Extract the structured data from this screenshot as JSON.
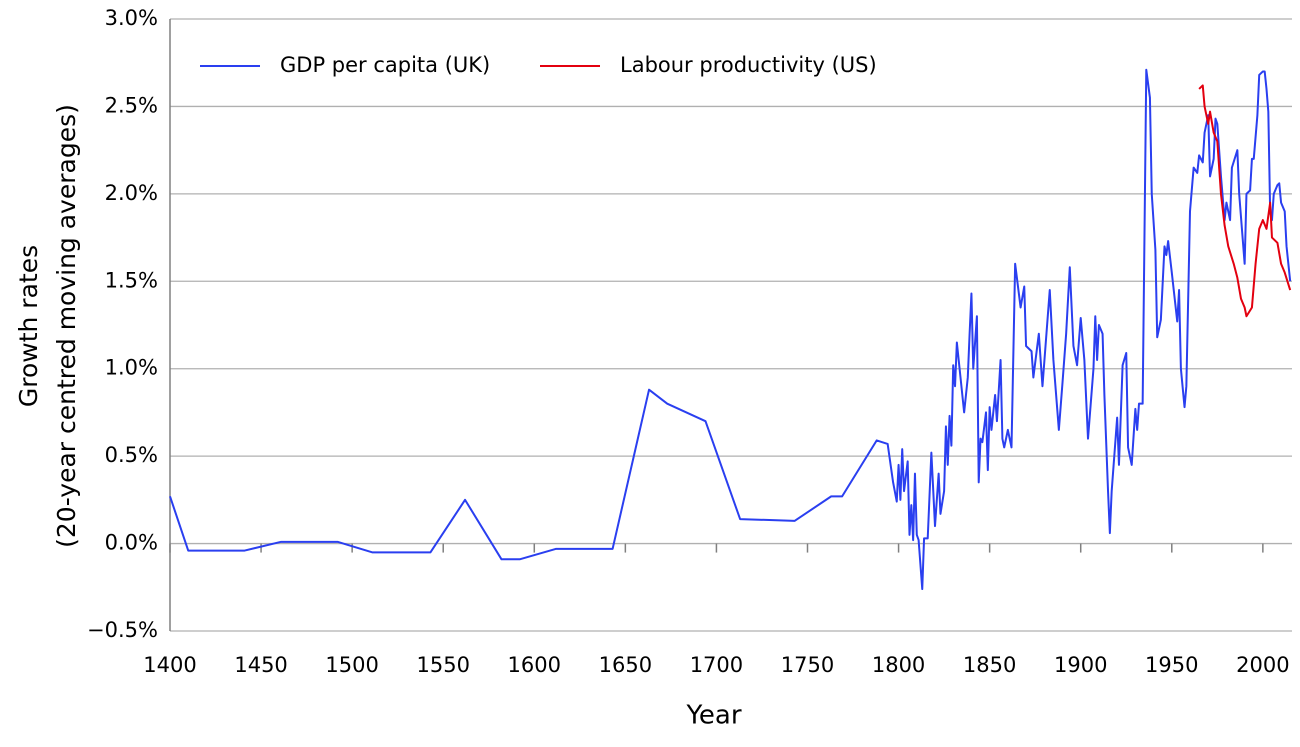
{
  "chart_data": {
    "type": "line",
    "xlabel": "Year",
    "ylabel": [
      "Growth rates",
      "(20-year centred moving averages)"
    ],
    "xlim": [
      1400,
      2016
    ],
    "ylim": [
      -0.5,
      3.0
    ],
    "xticks": [
      1400,
      1450,
      1500,
      1550,
      1600,
      1650,
      1700,
      1750,
      1800,
      1850,
      1900,
      1950,
      2000
    ],
    "yticks": [
      {
        "value": -0.5,
        "label": "−0.5%"
      },
      {
        "value": 0.0,
        "label": "0.0%"
      },
      {
        "value": 0.5,
        "label": "0.5%"
      },
      {
        "value": 1.0,
        "label": "1.0%"
      },
      {
        "value": 1.5,
        "label": "1.5%"
      },
      {
        "value": 2.0,
        "label": "2.0%"
      },
      {
        "value": 2.5,
        "label": "2.5%"
      },
      {
        "value": 3.0,
        "label": "3.0%"
      }
    ],
    "grid": true,
    "legend": "top-left",
    "series": [
      {
        "name": "GDP per capita (UK)",
        "color": "#2a3ff0",
        "x": [
          1400,
          1410,
          1441,
          1461,
          1492,
          1511,
          1543,
          1562,
          1582,
          1592,
          1612,
          1643,
          1663,
          1673,
          1694,
          1713,
          1743,
          1763,
          1769,
          1788,
          1794,
          1797,
          1799,
          1800,
          1801,
          1802,
          1803,
          1805,
          1806,
          1807,
          1808,
          1809,
          1810,
          1811,
          1813,
          1814,
          1816,
          1818,
          1820,
          1822,
          1823,
          1825,
          1826,
          1827,
          1828,
          1829,
          1830,
          1831,
          1832,
          1834,
          1836,
          1838,
          1839,
          1840,
          1841,
          1843,
          1844,
          1845,
          1846,
          1848,
          1849,
          1850,
          1851,
          1853,
          1854,
          1856,
          1857,
          1858,
          1860,
          1862,
          1864,
          1867,
          1869,
          1870,
          1873,
          1874,
          1877,
          1879,
          1883,
          1885,
          1888,
          1890,
          1892,
          1894,
          1896,
          1898,
          1900,
          1902,
          1904,
          1907,
          1908,
          1909,
          1910,
          1912,
          1913,
          1915,
          1916,
          1917,
          1920,
          1921,
          1923,
          1925,
          1926,
          1928,
          1930,
          1931,
          1932,
          1934,
          1936,
          1938,
          1939,
          1941,
          1942,
          1944,
          1946,
          1947,
          1948,
          1950,
          1953,
          1954,
          1955,
          1957,
          1958,
          1960,
          1962,
          1964,
          1965,
          1967,
          1968,
          1970,
          1971,
          1973,
          1974,
          1975,
          1977,
          1979,
          1980,
          1982,
          1983,
          1986,
          1987,
          1990,
          1991,
          1993,
          1994,
          1995,
          1997,
          1998,
          2000,
          2001,
          2002,
          2003,
          2004,
          2005,
          2006,
          2008,
          2009,
          2010,
          2012,
          2013,
          2015
        ],
        "values": [
          0.27,
          -0.04,
          -0.04,
          0.01,
          0.01,
          -0.05,
          -0.05,
          0.25,
          -0.09,
          -0.09,
          -0.03,
          -0.03,
          0.88,
          0.8,
          0.7,
          0.14,
          0.13,
          0.27,
          0.27,
          0.59,
          0.57,
          0.35,
          0.24,
          0.45,
          0.25,
          0.54,
          0.3,
          0.47,
          0.05,
          0.22,
          0.02,
          0.4,
          0.05,
          0.02,
          -0.26,
          0.03,
          0.03,
          0.52,
          0.1,
          0.4,
          0.17,
          0.3,
          0.67,
          0.45,
          0.73,
          0.56,
          1.02,
          0.9,
          1.15,
          0.95,
          0.75,
          0.95,
          1.2,
          1.43,
          1.0,
          1.3,
          0.35,
          0.6,
          0.58,
          0.75,
          0.42,
          0.78,
          0.65,
          0.85,
          0.7,
          1.05,
          0.6,
          0.55,
          0.65,
          0.55,
          1.6,
          1.35,
          1.47,
          1.13,
          1.1,
          0.95,
          1.2,
          0.9,
          1.45,
          1.05,
          0.65,
          0.92,
          1.2,
          1.58,
          1.13,
          1.02,
          1.29,
          1.05,
          0.6,
          1.0,
          1.3,
          1.05,
          1.25,
          1.2,
          0.85,
          0.3,
          0.06,
          0.3,
          0.72,
          0.45,
          1.02,
          1.09,
          0.55,
          0.45,
          0.77,
          0.65,
          0.8,
          0.8,
          2.71,
          2.55,
          2.0,
          1.68,
          1.18,
          1.28,
          1.7,
          1.65,
          1.73,
          1.55,
          1.27,
          1.45,
          1.0,
          0.78,
          0.9,
          1.9,
          2.15,
          2.12,
          2.22,
          2.18,
          2.35,
          2.45,
          2.1,
          2.2,
          2.43,
          2.4,
          2.1,
          1.85,
          1.95,
          1.85,
          2.15,
          2.25,
          2.0,
          1.6,
          2.0,
          2.02,
          2.2,
          2.2,
          2.45,
          2.68,
          2.7,
          2.7,
          2.6,
          2.47,
          1.9,
          1.85,
          2.0,
          2.05,
          2.06,
          1.95,
          1.9,
          1.7,
          1.5
        ]
      },
      {
        "name": "Labour productivity (US)",
        "color": "#e3000f",
        "x": [
          1965,
          1967,
          1968,
          1970,
          1971,
          1973,
          1975,
          1977,
          1979,
          1981,
          1984,
          1986,
          1988,
          1990,
          1991,
          1994,
          1996,
          1998,
          2000,
          2002,
          2004,
          2005,
          2008,
          2010,
          2012,
          2015
        ],
        "values": [
          2.6,
          2.62,
          2.5,
          2.4,
          2.47,
          2.35,
          2.3,
          2.0,
          1.82,
          1.7,
          1.6,
          1.52,
          1.4,
          1.35,
          1.3,
          1.35,
          1.6,
          1.8,
          1.85,
          1.8,
          1.95,
          1.75,
          1.72,
          1.6,
          1.55,
          1.45
        ]
      }
    ]
  }
}
